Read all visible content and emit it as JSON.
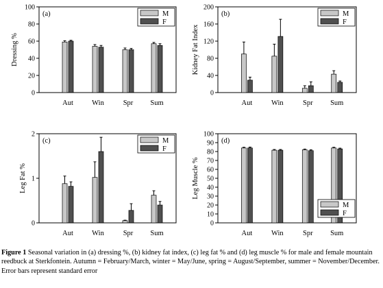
{
  "chart_data": [
    {
      "type": "bar",
      "panel": "(a)",
      "ylabel": "Dressing %",
      "categories": [
        "Aut",
        "Win",
        "Spr",
        "Sum"
      ],
      "ylim": [
        0,
        100
      ],
      "yticks": [
        "0",
        "20",
        "40",
        "60",
        "80",
        "100"
      ],
      "legend": "top-right",
      "series": [
        {
          "name": "M",
          "color": "#c8c8c8",
          "values": [
            59,
            54,
            50,
            57
          ],
          "errors": [
            1.5,
            2,
            2,
            1.5
          ]
        },
        {
          "name": "F",
          "color": "#505050",
          "values": [
            60,
            53,
            50,
            55
          ],
          "errors": [
            1,
            2,
            1.5,
            2
          ]
        }
      ]
    },
    {
      "type": "bar",
      "panel": "(b)",
      "ylabel": "Kidney Fat Index",
      "categories": [
        "Aut",
        "Win",
        "Spr",
        "Sum"
      ],
      "ylim": [
        0,
        200
      ],
      "yticks": [
        "0",
        "40",
        "80",
        "120",
        "160",
        "200"
      ],
      "legend": "top-right",
      "series": [
        {
          "name": "M",
          "color": "#c8c8c8",
          "values": [
            90,
            85,
            10,
            43
          ],
          "errors": [
            28,
            28,
            6,
            8
          ]
        },
        {
          "name": "F",
          "color": "#505050",
          "values": [
            29,
            131,
            16,
            24
          ],
          "errors": [
            7,
            40,
            9,
            3
          ]
        }
      ]
    },
    {
      "type": "bar",
      "panel": "(c)",
      "ylabel": "Leg Fat %",
      "categories": [
        "Aut",
        "Win",
        "Spr",
        "Sum"
      ],
      "ylim": [
        0,
        2
      ],
      "yticks": [
        "0",
        "1",
        "2"
      ],
      "legend": "top-right",
      "series": [
        {
          "name": "M",
          "color": "#c8c8c8",
          "values": [
            0.88,
            1.02,
            0.05,
            0.62
          ],
          "errors": [
            0.17,
            0.35,
            0.01,
            0.1
          ]
        },
        {
          "name": "F",
          "color": "#505050",
          "values": [
            0.82,
            1.6,
            0.28,
            0.4
          ],
          "errors": [
            0.1,
            0.32,
            0.15,
            0.08
          ]
        }
      ]
    },
    {
      "type": "bar",
      "panel": "(d)",
      "ylabel": "Leg Muscle %",
      "categories": [
        "Aut",
        "Win",
        "Spr",
        "Sum"
      ],
      "ylim": [
        0,
        100
      ],
      "yticks": [
        "0",
        "10",
        "20",
        "30",
        "40",
        "50",
        "60",
        "70",
        "80",
        "90",
        "100"
      ],
      "legend": "bottom-right",
      "series": [
        {
          "name": "M",
          "color": "#c8c8c8",
          "values": [
            84,
            81.5,
            82,
            84
          ],
          "errors": [
            0.8,
            0.8,
            0.8,
            0.8
          ]
        },
        {
          "name": "F",
          "color": "#505050",
          "values": [
            84,
            81.5,
            81,
            83
          ],
          "errors": [
            1,
            0.8,
            1,
            0.8
          ]
        }
      ]
    }
  ],
  "caption": {
    "label": "Figure 1",
    "text": " Seasonal variation in (a) dressing %, (b) kidney fat index, (c) leg fat % and (d) leg muscle % for male and female mountain reedbuck at Sterkfontein. Autumn = February/March, winter = May/June, spring = August/September, summer = November/December. Error bars represent standard error"
  }
}
